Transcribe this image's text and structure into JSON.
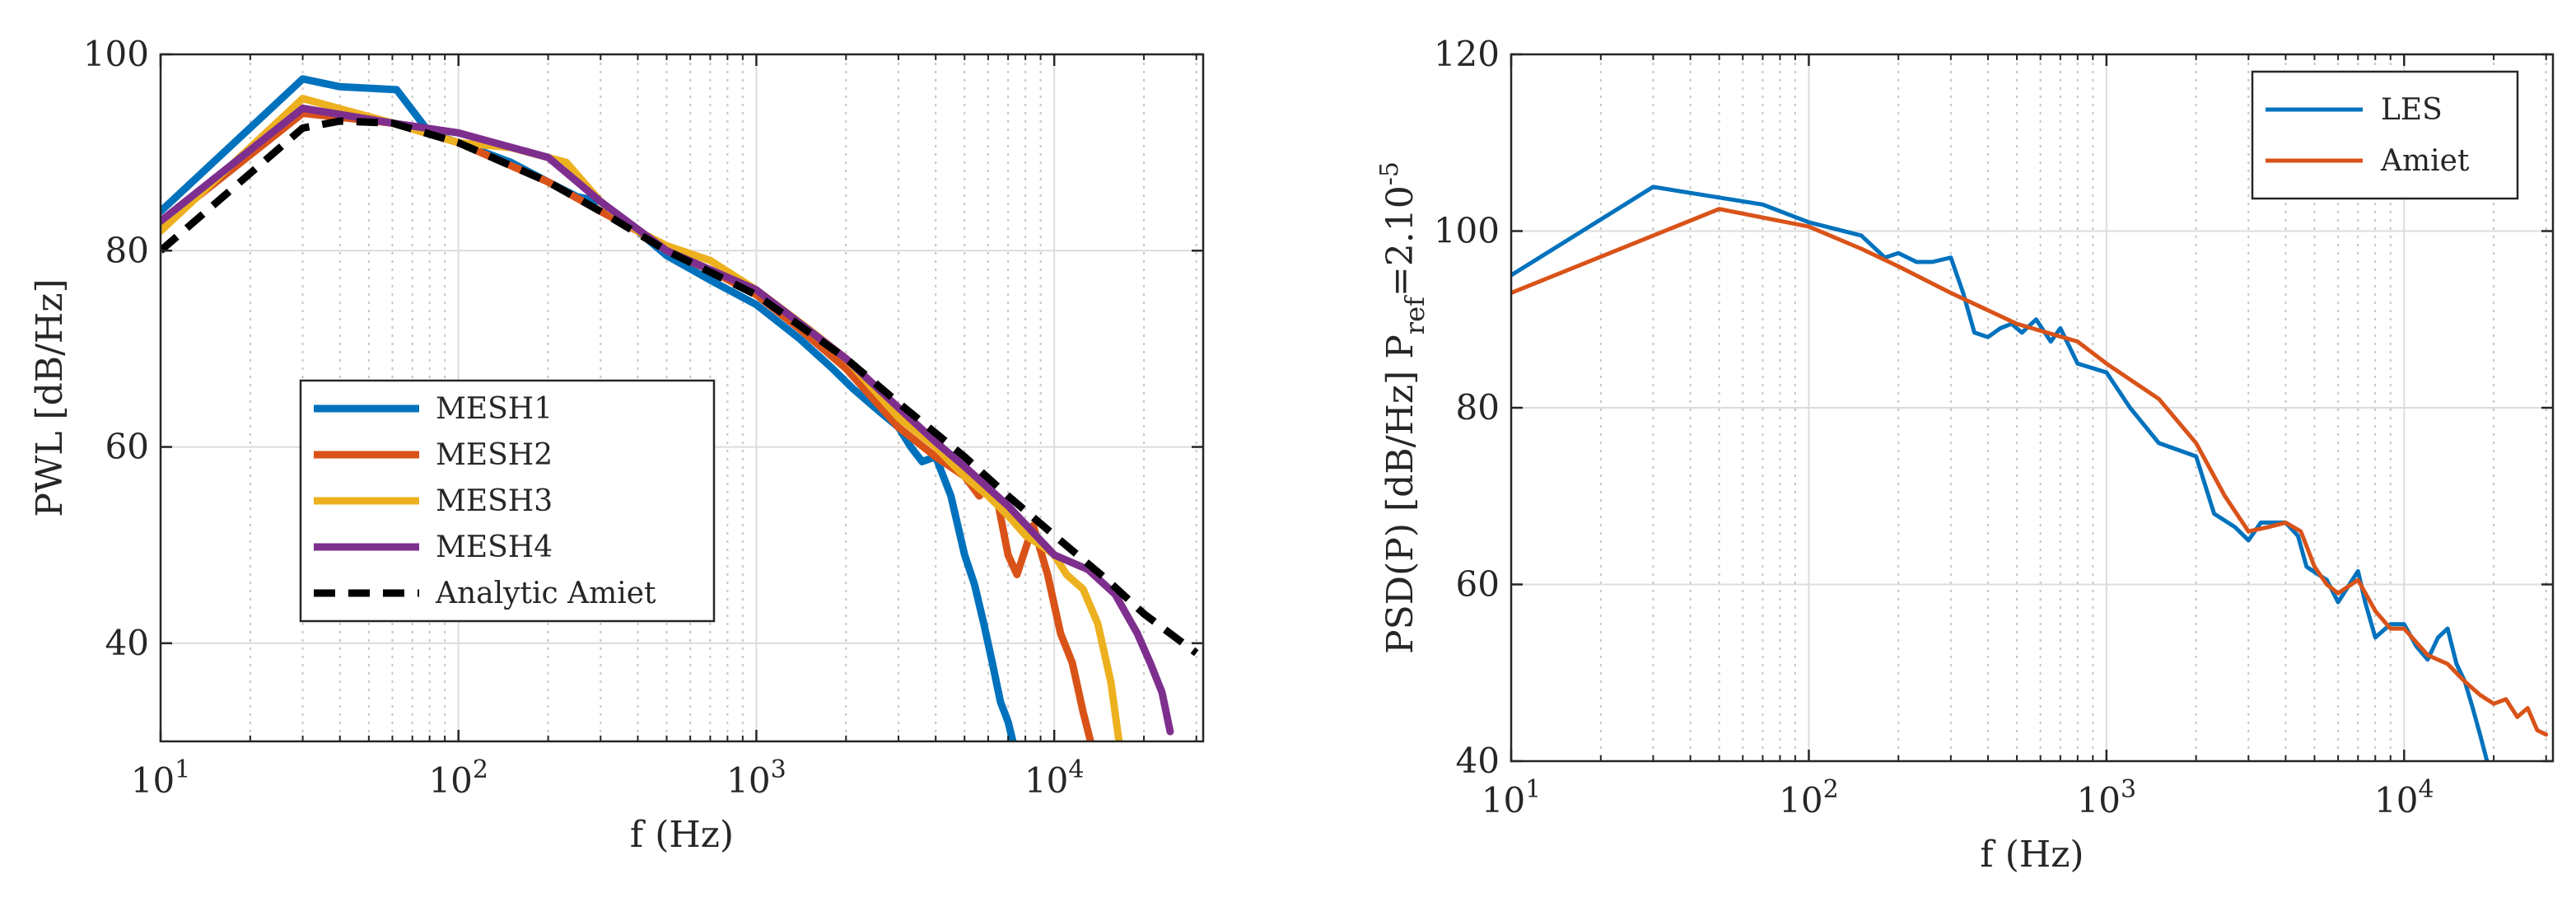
{
  "chart_data": [
    {
      "type": "line",
      "xscale": "log",
      "xlim": [
        10,
        31623
      ],
      "ylim": [
        30,
        100
      ],
      "xlabel": "f (Hz)",
      "ylabel": "PWL [dB/Hz]",
      "grid": true,
      "legend_position": "center-left",
      "xticks": [
        {
          "value": 10,
          "base": "10",
          "exp": "1"
        },
        {
          "value": 100,
          "base": "10",
          "exp": "2"
        },
        {
          "value": 1000,
          "base": "10",
          "exp": "3"
        },
        {
          "value": 10000,
          "base": "10",
          "exp": "4"
        }
      ],
      "yticks": [
        {
          "value": 40,
          "label": "40"
        },
        {
          "value": 60,
          "label": "60"
        },
        {
          "value": 80,
          "label": "80"
        },
        {
          "value": 100,
          "label": "100"
        }
      ],
      "series": [
        {
          "name": "MESH1",
          "color": "#0072BD",
          "dash": "solid",
          "x": [
            10,
            30,
            40,
            62,
            80,
            100,
            150,
            200,
            250,
            300,
            400,
            500,
            700,
            1000,
            1400,
            1800,
            2100,
            2500,
            3000,
            3300,
            3600,
            4000,
            4500,
            5000,
            5400,
            5800,
            6200,
            6600,
            7000,
            7400
          ],
          "y": [
            84,
            97.5,
            96.7,
            96.4,
            92,
            91,
            89,
            87,
            85.5,
            85,
            82,
            79.5,
            77,
            74.5,
            71,
            68,
            66,
            64,
            62,
            60,
            58.5,
            59,
            55,
            49,
            46,
            42,
            38,
            34,
            32,
            29
          ]
        },
        {
          "name": "MESH2",
          "color": "#D95319",
          "dash": "solid",
          "x": [
            10,
            30,
            60,
            100,
            200,
            300,
            400,
            500,
            700,
            1000,
            1400,
            2000,
            3000,
            4000,
            5000,
            5600,
            6000,
            6500,
            7000,
            7500,
            8500,
            9500,
            10500,
            11500,
            12500,
            13500
          ],
          "y": [
            82.5,
            94,
            93,
            91,
            87,
            84,
            82,
            80,
            78,
            75.5,
            72,
            68,
            62,
            59,
            57,
            55,
            56,
            54,
            49,
            47,
            52,
            47,
            41,
            38,
            33,
            29
          ]
        },
        {
          "name": "MESH3",
          "color": "#EDB120",
          "dash": "solid",
          "x": [
            10,
            30,
            60,
            100,
            150,
            230,
            300,
            400,
            500,
            700,
            1000,
            1500,
            2000,
            3000,
            4000,
            5000,
            6000,
            7000,
            8000,
            9000,
            10000,
            11000,
            12500,
            14000,
            15500,
            16500
          ],
          "y": [
            82,
            95.5,
            93,
            91,
            90.5,
            89,
            85,
            82,
            80.5,
            79,
            76,
            72,
            69,
            63,
            60,
            57,
            55,
            53,
            51,
            50,
            49,
            47,
            45.5,
            42,
            36,
            30
          ]
        },
        {
          "name": "MESH4",
          "color": "#7E2F8E",
          "dash": "solid",
          "x": [
            10,
            30,
            60,
            100,
            200,
            300,
            500,
            1000,
            2000,
            3000,
            4000,
            5000,
            7000,
            10000,
            13000,
            16000,
            19000,
            21000,
            23000,
            24500
          ],
          "y": [
            83,
            94.5,
            93,
            92,
            89.5,
            85,
            80,
            76,
            69,
            64,
            60.5,
            58,
            54,
            49,
            47.5,
            45,
            41,
            38,
            35,
            31
          ]
        },
        {
          "name": "Analytic Amiet",
          "color": "#000000",
          "dash": "dashed",
          "x": [
            10,
            30,
            40,
            60,
            100,
            200,
            300,
            500,
            1000,
            2000,
            3000,
            5000,
            7000,
            10000,
            15000,
            20000,
            30000
          ],
          "y": [
            80,
            92.5,
            93.2,
            93,
            91,
            87,
            84,
            80,
            75.5,
            69,
            64.5,
            59,
            55,
            51,
            46.5,
            43,
            39
          ]
        }
      ]
    },
    {
      "type": "line",
      "xscale": "log",
      "xlim": [
        10,
        31623
      ],
      "ylim": [
        40,
        120
      ],
      "xlabel": "f (Hz)",
      "ylabel_main": "PSD(P) [dB/Hz] P",
      "ylabel_sub": "ref",
      "ylabel_tail": "=2.10",
      "ylabel_sup": "-5",
      "grid": true,
      "legend_position": "top-right",
      "xticks": [
        {
          "value": 10,
          "base": "10",
          "exp": "1"
        },
        {
          "value": 100,
          "base": "10",
          "exp": "2"
        },
        {
          "value": 1000,
          "base": "10",
          "exp": "3"
        },
        {
          "value": 10000,
          "base": "10",
          "exp": "4"
        }
      ],
      "yticks": [
        {
          "value": 40,
          "label": "40"
        },
        {
          "value": 60,
          "label": "60"
        },
        {
          "value": 80,
          "label": "80"
        },
        {
          "value": 100,
          "label": "100"
        },
        {
          "value": 120,
          "label": "120"
        }
      ],
      "series": [
        {
          "name": "LES",
          "color": "#0072BD",
          "dash": "solid",
          "x": [
            10,
            30,
            70,
            100,
            150,
            180,
            200,
            230,
            260,
            300,
            330,
            360,
            400,
            440,
            480,
            520,
            580,
            650,
            700,
            800,
            1000,
            1200,
            1500,
            2000,
            2300,
            2700,
            3000,
            3300,
            3600,
            4000,
            4400,
            4700,
            5500,
            6000,
            7000,
            7400,
            8000,
            9000,
            10000,
            11000,
            12000,
            13000,
            14000,
            15000,
            16000,
            17000,
            18000,
            19000
          ],
          "y": [
            95,
            105,
            103,
            101,
            99.5,
            97,
            97.5,
            96.5,
            96.5,
            97,
            93,
            88.5,
            88,
            89,
            89.5,
            88.5,
            90,
            87.5,
            89,
            85,
            84,
            80,
            76,
            74.5,
            68,
            66.5,
            65,
            67,
            67,
            67,
            65.5,
            62,
            60.5,
            58,
            61.5,
            58,
            54,
            55.5,
            55.5,
            53,
            51.5,
            54,
            55,
            51,
            49,
            46,
            43,
            40
          ]
        },
        {
          "name": "Amiet",
          "color": "#D95319",
          "dash": "solid",
          "x": [
            10,
            50,
            100,
            150,
            200,
            300,
            500,
            800,
            1000,
            1500,
            2000,
            2500,
            3000,
            3500,
            4000,
            4500,
            5000,
            5500,
            6000,
            7000,
            8000,
            9000,
            10000,
            12000,
            14000,
            16000,
            18000,
            20000,
            22000,
            24000,
            26000,
            28000,
            30000
          ],
          "y": [
            93,
            102.5,
            100.5,
            98,
            96,
            93,
            89.5,
            87.5,
            85,
            81,
            76,
            70,
            66,
            66.5,
            67,
            66,
            62,
            60,
            59,
            60.5,
            57,
            55,
            55,
            52,
            51,
            49,
            47.5,
            46.5,
            47,
            45,
            46,
            43.5,
            43
          ]
        }
      ]
    }
  ]
}
